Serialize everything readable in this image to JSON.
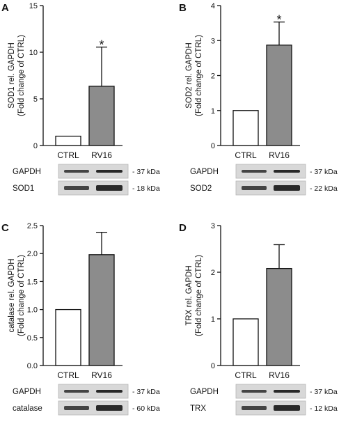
{
  "chart_data": [
    {
      "panel": "A",
      "type": "bar",
      "categories": [
        "CTRL",
        "RV16"
      ],
      "values": [
        1.0,
        6.35
      ],
      "errors": [
        0,
        4.2
      ],
      "significance": [
        "",
        "*"
      ],
      "ylabel_line1": "SOD1 rel. GAPDH",
      "ylabel_line2": "(Fold change of CTRL)",
      "ylim": [
        0,
        15
      ],
      "yticks": [
        "0",
        "5",
        "10",
        "15"
      ],
      "bar_colors": [
        "#ffffff",
        "#8c8c8c"
      ],
      "blots": [
        {
          "label": "GAPDH",
          "kda": "- 37 kDa"
        },
        {
          "label": "SOD1",
          "kda": "- 18 kDa"
        }
      ]
    },
    {
      "panel": "B",
      "type": "bar",
      "categories": [
        "CTRL",
        "RV16"
      ],
      "values": [
        1.0,
        2.87
      ],
      "errors": [
        0,
        0.66
      ],
      "significance": [
        "",
        "*"
      ],
      "ylabel_line1": "SOD2 rel. GAPDH",
      "ylabel_line2": "(Fold change of CTRL)",
      "ylim": [
        0,
        4
      ],
      "yticks": [
        "0",
        "1",
        "2",
        "3",
        "4"
      ],
      "bar_colors": [
        "#ffffff",
        "#8c8c8c"
      ],
      "blots": [
        {
          "label": "GAPDH",
          "kda": "- 37 kDa"
        },
        {
          "label": "SOD2",
          "kda": "- 22 kDa"
        }
      ]
    },
    {
      "panel": "C",
      "type": "bar",
      "categories": [
        "CTRL",
        "RV16"
      ],
      "values": [
        1.0,
        1.98
      ],
      "errors": [
        0,
        0.4
      ],
      "significance": [
        "",
        ""
      ],
      "ylabel_line1": "catalase rel. GAPDH",
      "ylabel_line2": "(Fold change of CTRL)",
      "ylim": [
        0,
        2.5
      ],
      "yticks": [
        "0.0",
        "0.5",
        "1.0",
        "1.5",
        "2.0",
        "2.5"
      ],
      "bar_colors": [
        "#ffffff",
        "#8c8c8c"
      ],
      "blots": [
        {
          "label": "GAPDH",
          "kda": "- 37 kDa"
        },
        {
          "label": "catalase",
          "kda": "- 60 kDa"
        }
      ]
    },
    {
      "panel": "D",
      "type": "bar",
      "categories": [
        "CTRL",
        "RV16"
      ],
      "values": [
        1.0,
        2.08
      ],
      "errors": [
        0,
        0.51
      ],
      "significance": [
        "",
        ""
      ],
      "ylabel_line1": "TRX rel. GAPDH",
      "ylabel_line2": "(Fold change of CTRL)",
      "ylim": [
        0,
        3
      ],
      "yticks": [
        "0",
        "1",
        "2",
        "3"
      ],
      "bar_colors": [
        "#ffffff",
        "#8c8c8c"
      ],
      "blots": [
        {
          "label": "GAPDH",
          "kda": "- 37 kDa"
        },
        {
          "label": "TRX",
          "kda": "- 12 kDa"
        }
      ]
    }
  ]
}
